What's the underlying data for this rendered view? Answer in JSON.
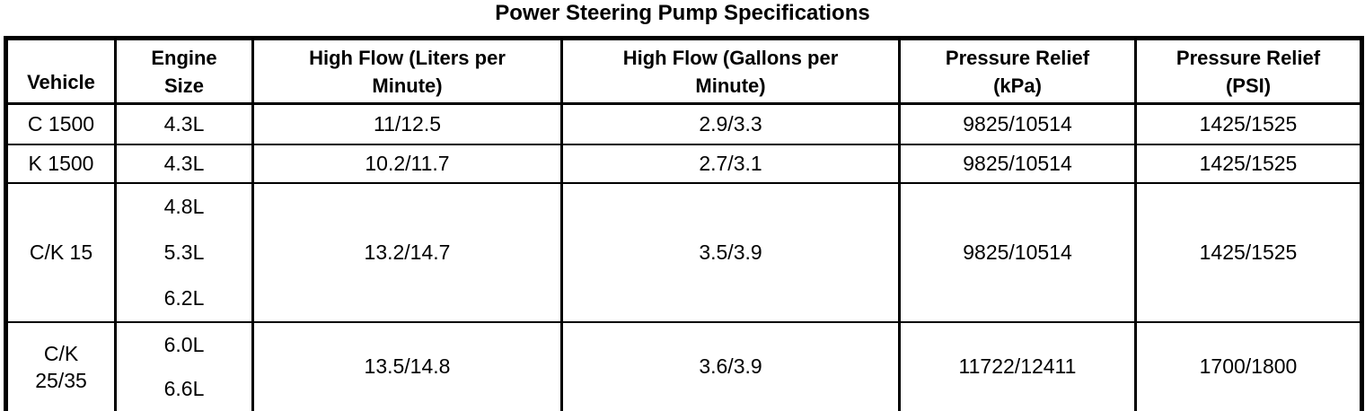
{
  "page": {
    "background_color": "#ffffff",
    "text_color": "#000000",
    "border_color": "#000000"
  },
  "title": "Power Steering Pump Specifications",
  "table": {
    "headers": [
      {
        "label": "Vehicle",
        "lines": [
          "Vehicle"
        ]
      },
      {
        "label": "Engine Size",
        "lines": [
          "Engine",
          "Size"
        ]
      },
      {
        "label": "High Flow (Liters per Minute)",
        "lines": [
          "High Flow (Liters per",
          "Minute)"
        ]
      },
      {
        "label": "High Flow (Gallons per Minute)",
        "lines": [
          "High Flow (Gallons per",
          "Minute)"
        ]
      },
      {
        "label": "Pressure Relief (kPa)",
        "lines": [
          "Pressure Relief",
          "(kPa)"
        ]
      },
      {
        "label": "Pressure Relief (PSI)",
        "lines": [
          "Pressure Relief",
          "(PSI)"
        ]
      }
    ],
    "rows": [
      {
        "vehicle_lines": [
          "C 1500"
        ],
        "engine_lines": [
          "4.3L"
        ],
        "high_flow_lpm": "11/12.5",
        "high_flow_gpm": "2.9/3.3",
        "pressure_relief_kpa": "9825/10514",
        "pressure_relief_psi": "1425/1525"
      },
      {
        "vehicle_lines": [
          "K 1500"
        ],
        "engine_lines": [
          "4.3L"
        ],
        "high_flow_lpm": "10.2/11.7",
        "high_flow_gpm": "2.7/3.1",
        "pressure_relief_kpa": "9825/10514",
        "pressure_relief_psi": "1425/1525"
      },
      {
        "vehicle_lines": [
          "C/K 15"
        ],
        "engine_lines": [
          "4.8L",
          "5.3L",
          "6.2L"
        ],
        "high_flow_lpm": "13.2/14.7",
        "high_flow_gpm": "3.5/3.9",
        "pressure_relief_kpa": "9825/10514",
        "pressure_relief_psi": "1425/1525"
      },
      {
        "vehicle_lines": [
          "C/K",
          "25/35"
        ],
        "engine_lines": [
          "6.0L",
          "6.6L"
        ],
        "high_flow_lpm": "13.5/14.8",
        "high_flow_gpm": "3.6/3.9",
        "pressure_relief_kpa": "11722/12411",
        "pressure_relief_psi": "1700/1800"
      }
    ]
  }
}
